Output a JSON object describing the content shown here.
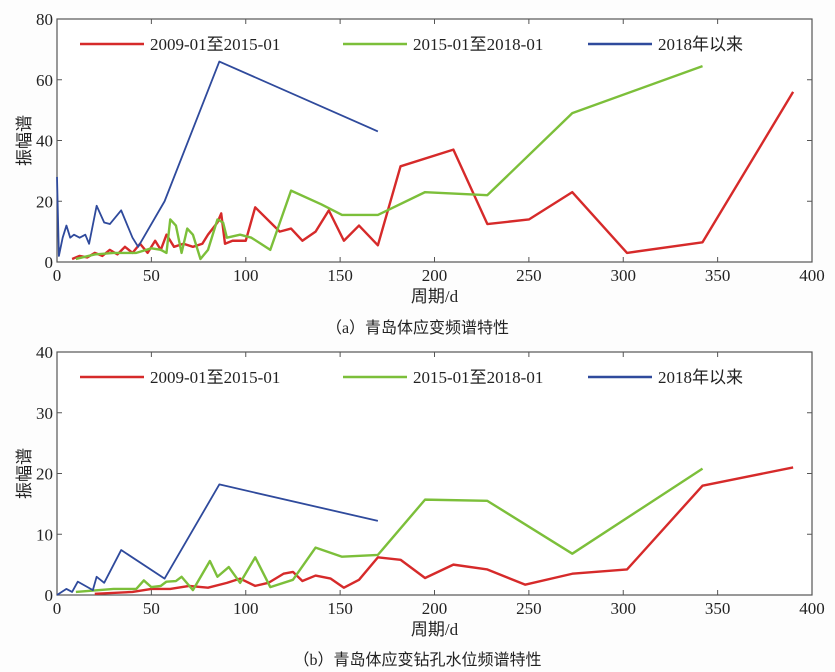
{
  "colors": {
    "red": "#d62a2a",
    "green": "#7cbf3a",
    "blue": "#2f4a9c"
  },
  "chart_data": [
    {
      "type": "line",
      "title": "",
      "caption": "（a）青岛体应变频谱特性",
      "xlabel": "周期/d",
      "ylabel": "振幅谱",
      "xlim": [
        0,
        400
      ],
      "ylim": [
        0,
        80
      ],
      "xticks": [
        0,
        50,
        100,
        150,
        200,
        250,
        300,
        350,
        400
      ],
      "yticks": [
        0,
        20,
        40,
        60,
        80
      ],
      "legend": "top",
      "series": [
        {
          "name": "2009-01至2015-01",
          "color": "red",
          "points": [
            [
              8,
              1
            ],
            [
              12,
              2
            ],
            [
              16,
              1.5
            ],
            [
              20,
              3
            ],
            [
              24,
              2
            ],
            [
              28,
              4
            ],
            [
              32,
              2.5
            ],
            [
              36,
              5
            ],
            [
              40,
              3
            ],
            [
              44,
              6
            ],
            [
              48,
              3
            ],
            [
              52,
              7
            ],
            [
              55,
              4
            ],
            [
              58,
              9
            ],
            [
              62,
              5
            ],
            [
              67,
              6
            ],
            [
              72,
              5
            ],
            [
              77,
              6
            ],
            [
              80,
              9
            ],
            [
              85,
              13
            ],
            [
              87,
              16
            ],
            [
              89,
              6
            ],
            [
              93,
              7
            ],
            [
              100,
              7
            ],
            [
              105,
              18
            ],
            [
              118,
              10
            ],
            [
              124,
              11
            ],
            [
              130,
              7
            ],
            [
              137,
              10
            ],
            [
              144,
              17
            ],
            [
              152,
              7
            ],
            [
              160,
              12
            ],
            [
              170,
              5.5
            ],
            [
              182,
              31.5
            ],
            [
              210,
              37
            ],
            [
              228,
              12.5
            ],
            [
              250,
              14
            ],
            [
              273,
              23
            ],
            [
              302,
              3
            ],
            [
              342,
              6.5
            ],
            [
              390,
              56
            ]
          ]
        },
        {
          "name": "2015-01至2018-01",
          "color": "green",
          "points": [
            [
              10,
              1
            ],
            [
              20,
              2.5
            ],
            [
              30,
              3
            ],
            [
              42,
              3
            ],
            [
              50,
              4.5
            ],
            [
              55,
              4
            ],
            [
              58,
              3
            ],
            [
              60,
              14
            ],
            [
              63,
              12
            ],
            [
              66,
              3
            ],
            [
              69,
              11
            ],
            [
              72,
              9
            ],
            [
              76,
              1
            ],
            [
              80,
              4
            ],
            [
              85,
              14
            ],
            [
              88,
              13
            ],
            [
              90,
              8
            ],
            [
              97,
              9
            ],
            [
              103,
              8
            ],
            [
              108,
              6
            ],
            [
              113,
              4
            ],
            [
              124,
              23.5
            ],
            [
              140,
              19
            ],
            [
              151,
              15.5
            ],
            [
              170,
              15.5
            ],
            [
              195,
              23
            ],
            [
              228,
              22
            ],
            [
              273,
              49
            ],
            [
              342,
              64.5
            ]
          ]
        },
        {
          "name": "2018年以来",
          "color": "blue",
          "points": [
            [
              0,
              28
            ],
            [
              1,
              2
            ],
            [
              3,
              8
            ],
            [
              5,
              12
            ],
            [
              7,
              8
            ],
            [
              9,
              9
            ],
            [
              12,
              8
            ],
            [
              15,
              9
            ],
            [
              17,
              6
            ],
            [
              21,
              18.5
            ],
            [
              25,
              13
            ],
            [
              28,
              12.5
            ],
            [
              34,
              17
            ],
            [
              40,
              8
            ],
            [
              43,
              5
            ],
            [
              57,
              20
            ],
            [
              86,
              66
            ],
            [
              170,
              43
            ]
          ]
        }
      ]
    },
    {
      "type": "line",
      "title": "",
      "caption": "（b）青岛体应变钻孔水位频谱特性",
      "xlabel": "周期/d",
      "ylabel": "振幅谱",
      "xlim": [
        0,
        400
      ],
      "ylim": [
        0,
        40
      ],
      "xticks": [
        0,
        50,
        100,
        150,
        200,
        250,
        300,
        350,
        400
      ],
      "yticks": [
        0,
        10,
        20,
        30,
        40
      ],
      "legend": "top",
      "series": [
        {
          "name": "2009-01至2015-01",
          "color": "red",
          "points": [
            [
              20,
              0.2
            ],
            [
              40,
              0.5
            ],
            [
              50,
              1
            ],
            [
              60,
              1
            ],
            [
              70,
              1.5
            ],
            [
              80,
              1.2
            ],
            [
              90,
              2
            ],
            [
              97,
              2.7
            ],
            [
              105,
              1.5
            ],
            [
              112,
              2
            ],
            [
              120,
              3.5
            ],
            [
              125,
              3.8
            ],
            [
              130,
              2.3
            ],
            [
              137,
              3.2
            ],
            [
              145,
              2.7
            ],
            [
              152,
              1.2
            ],
            [
              160,
              2.5
            ],
            [
              170,
              6.2
            ],
            [
              182,
              5.8
            ],
            [
              195,
              2.8
            ],
            [
              210,
              5
            ],
            [
              228,
              4.2
            ],
            [
              248,
              1.7
            ],
            [
              273,
              3.5
            ],
            [
              302,
              4.2
            ],
            [
              342,
              18
            ],
            [
              390,
              21
            ]
          ]
        },
        {
          "name": "2015-01至2018-01",
          "color": "green",
          "points": [
            [
              10,
              0.5
            ],
            [
              30,
              1
            ],
            [
              42,
              1
            ],
            [
              46,
              2.4
            ],
            [
              50,
              1.3
            ],
            [
              55,
              1.5
            ],
            [
              58,
              2.2
            ],
            [
              63,
              2.3
            ],
            [
              66,
              3
            ],
            [
              72,
              0.8
            ],
            [
              81,
              5.6
            ],
            [
              85,
              3
            ],
            [
              91,
              4.6
            ],
            [
              97,
              2
            ],
            [
              105,
              6.2
            ],
            [
              113,
              1.3
            ],
            [
              125,
              2.5
            ],
            [
              137,
              7.8
            ],
            [
              151,
              6.3
            ],
            [
              170,
              6.6
            ],
            [
              195,
              15.7
            ],
            [
              228,
              15.5
            ],
            [
              273,
              6.8
            ],
            [
              342,
              20.8
            ]
          ]
        },
        {
          "name": "2018年以来",
          "color": "blue",
          "points": [
            [
              0,
              0
            ],
            [
              5,
              1
            ],
            [
              8,
              0.5
            ],
            [
              11,
              2.2
            ],
            [
              15,
              1.5
            ],
            [
              19,
              0.8
            ],
            [
              21,
              3
            ],
            [
              25,
              2
            ],
            [
              34,
              7.4
            ],
            [
              57,
              2.7
            ],
            [
              86,
              18.2
            ],
            [
              170,
              12.2
            ]
          ]
        }
      ]
    }
  ]
}
